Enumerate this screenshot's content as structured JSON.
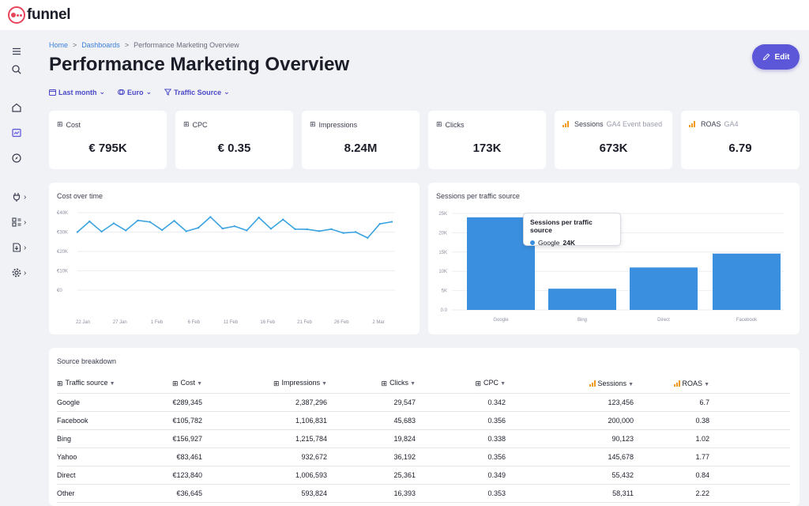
{
  "app": {
    "name": "funnel"
  },
  "breadcrumb": {
    "home": "Home",
    "dashboards": "Dashboards",
    "current": "Performance Marketing Overview",
    "sep": ">"
  },
  "page": {
    "title": "Performance Marketing Overview",
    "edit_label": "Edit"
  },
  "filters": {
    "date": "Last month",
    "currency": "Euro",
    "source": "Traffic Source"
  },
  "kpis": [
    {
      "label": "Cost",
      "sub": "",
      "value": "€ 795K",
      "icon": "dimension-icon"
    },
    {
      "label": "CPC",
      "sub": "",
      "value": "€ 0.35",
      "icon": "dimension-icon"
    },
    {
      "label": "Impressions",
      "sub": "",
      "value": "8.24M",
      "icon": "dimension-icon"
    },
    {
      "label": "Clicks",
      "sub": "",
      "value": "173K",
      "icon": "dimension-icon"
    },
    {
      "label": "Sessions",
      "sub": "GA4 Event based",
      "value": "673K",
      "icon": "analytics-icon"
    },
    {
      "label": "ROAS",
      "sub": "GA4",
      "value": "6.79",
      "icon": "analytics-icon"
    }
  ],
  "charts": {
    "cost_title": "Cost over time",
    "sessions_title": "Sessions per traffic source",
    "tooltip": {
      "title": "Sessions per traffic source",
      "label": "Google",
      "value": "24K"
    }
  },
  "chart_data": [
    {
      "type": "line",
      "title": "Cost over time",
      "ylim": [
        0,
        40000
      ],
      "y_ticks": [
        "€40K",
        "€30K",
        "€20K",
        "€10K",
        "€0"
      ],
      "y_tick_values": [
        40000,
        30000,
        20000,
        10000,
        0
      ],
      "x_ticks": [
        "22 Jan",
        "27 Jan",
        "1 Feb",
        "6 Feb",
        "11 Feb",
        "16 Feb",
        "21 Feb",
        "26 Feb",
        "2 Mar"
      ],
      "series": [
        {
          "name": "Cost",
          "color": "#3aa3e0",
          "values": [
            30000,
            35500,
            30200,
            34500,
            30800,
            36000,
            35200,
            31000,
            35800,
            30400,
            32200,
            37800,
            31800,
            33000,
            30800,
            37500,
            31700,
            36500,
            31500,
            31400,
            30500,
            31500,
            29500,
            30000,
            27000,
            34200,
            35300
          ]
        }
      ]
    },
    {
      "type": "bar",
      "title": "Sessions per traffic source",
      "categories": [
        "Google",
        "Bing",
        "Direct",
        "Facebook"
      ],
      "values": [
        24000,
        5500,
        11000,
        14600
      ],
      "ylim": [
        0,
        25000
      ],
      "y_ticks": [
        "25K",
        "20K",
        "15K",
        "10K",
        "5K",
        "0.0"
      ],
      "y_tick_values": [
        25000,
        20000,
        15000,
        10000,
        5000,
        0
      ],
      "color": "#3a8fde"
    }
  ],
  "table": {
    "title": "Source breakdown",
    "columns": [
      "Traffic source",
      "Cost",
      "Impressions",
      "Clicks",
      "CPC",
      "Sessions",
      "ROAS"
    ],
    "rows": [
      [
        "Google",
        "€289,345",
        "2,387,296",
        "29,547",
        "0.342",
        "123,456",
        "6.7"
      ],
      [
        "Facebook",
        "€105,782",
        "1,106,831",
        "45,683",
        "0.356",
        "200,000",
        "0.38"
      ],
      [
        "Bing",
        "€156,927",
        "1,215,784",
        "19,824",
        "0.338",
        "90,123",
        "1.02"
      ],
      [
        "Yahoo",
        "€83,461",
        "932,672",
        "36,192",
        "0.356",
        "145,678",
        "1.77"
      ],
      [
        "Direct",
        "€123,840",
        "1,006,593",
        "25,361",
        "0.349",
        "55,432",
        "0.84"
      ],
      [
        "Other",
        "€36,645",
        "593,824",
        "16,393",
        "0.353",
        "58,311",
        "2.22"
      ]
    ]
  },
  "colors": {
    "accent": "#5b57d8",
    "link": "#3b7fd9",
    "line": "#3aa3e0",
    "bar": "#3a8fde",
    "brand": "#e8455a",
    "ga4": "#f29a20"
  }
}
